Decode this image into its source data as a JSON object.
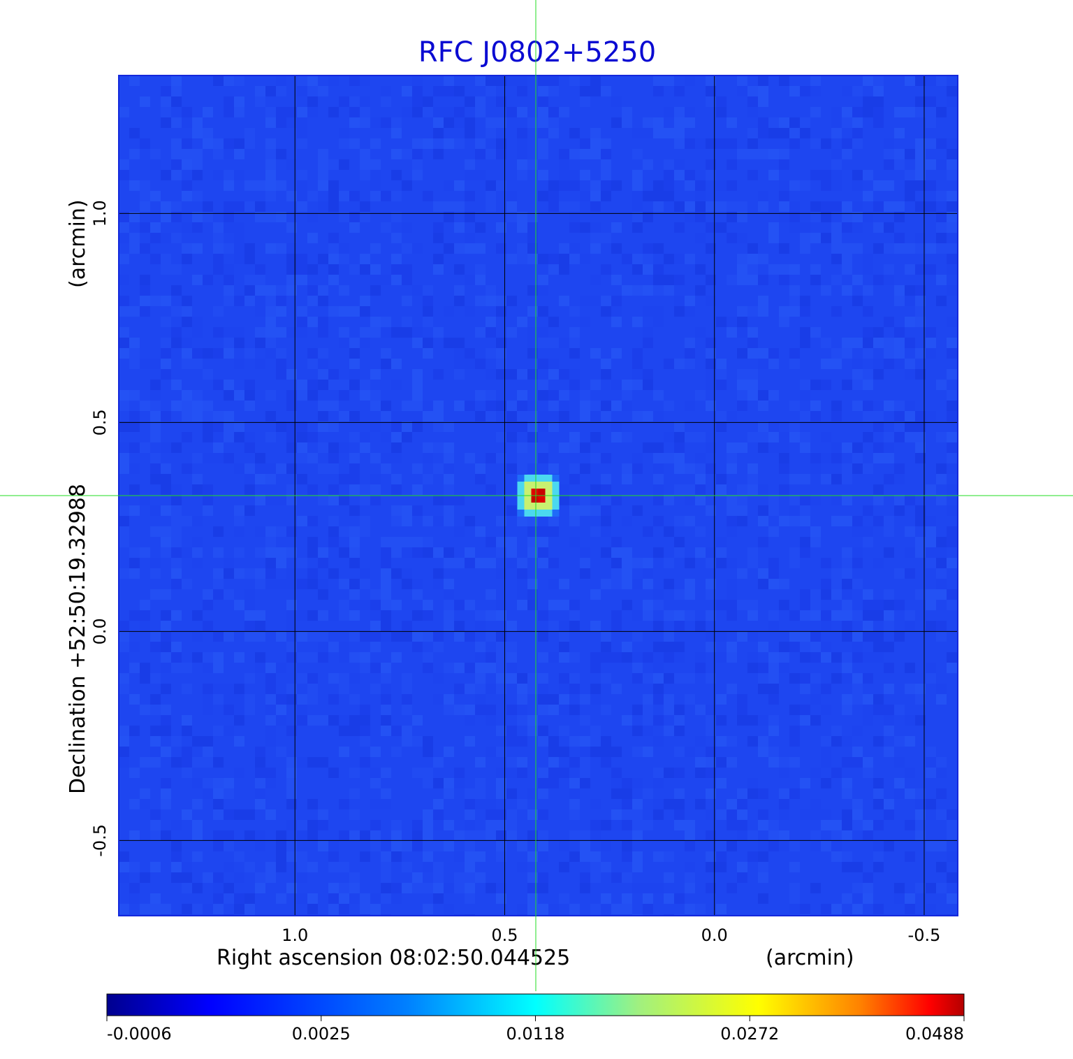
{
  "chart_data": {
    "type": "heatmap",
    "title": "RFC J0802+5250",
    "xlabel": "Right ascension  08:02:50.044525",
    "xunit": "(arcmin)",
    "ylabel": "Declination  +52:50:19.32988",
    "yunit": "(arcmin)",
    "x_ticks": [
      1.0,
      0.5,
      0.0,
      -0.5
    ],
    "x_tick_labels": [
      "1.0",
      "0.5",
      "0.0",
      "-0.5"
    ],
    "y_ticks": [
      1.0,
      0.5,
      0.0,
      -0.5
    ],
    "y_tick_labels": [
      "1.0",
      "0.5",
      "0.0",
      "-0.5"
    ],
    "xlim": [
      1.42,
      -0.58
    ],
    "ylim": [
      -0.68,
      1.33
    ],
    "grid": true,
    "colormap": "jet",
    "source": {
      "x": 0.42,
      "y": 0.325,
      "peak": 0.0488
    },
    "crosshair": {
      "x": 0.425,
      "y": 0.325,
      "color": "#22dd22"
    },
    "colorbar": {
      "ticks": [
        "-0.0006",
        "0.0025",
        "0.0118",
        "0.0272",
        "0.0488"
      ],
      "min": -0.0006,
      "max": 0.0488
    },
    "colors": {
      "title": "#0a0ad2",
      "background": "#1e46f0",
      "grid": "#000000",
      "frame": "#1428dc"
    }
  }
}
